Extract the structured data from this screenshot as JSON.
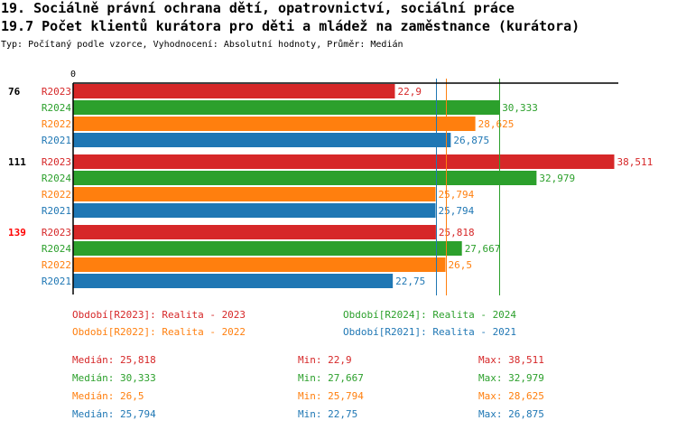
{
  "header": {
    "title1": "19. Sociálně právní ochrana dětí, opatrovnictví, sociální práce",
    "title2": "19.7 Počet klientů kurátora pro děti a mládež na zaměstnance (kurátora)",
    "subtitle": "Typ: Počítaný podle vzorce, Vyhodnocení: Absolutní hodnoty, Průměr: Medián"
  },
  "colors": {
    "R2023": "#d62728",
    "R2024": "#2ca02c",
    "R2022": "#ff7f0e",
    "R2021": "#1f77b4"
  },
  "chart_data": {
    "type": "bar",
    "orientation": "horizontal",
    "x_tick_labels": [
      "0"
    ],
    "xlim": [
      0,
      38.8
    ],
    "groups": [
      {
        "label": "76",
        "highlight": false,
        "bars": [
          {
            "series": "R2023",
            "value": 22.9,
            "label": "22,9"
          },
          {
            "series": "R2024",
            "value": 30.333,
            "label": "30,333"
          },
          {
            "series": "R2022",
            "value": 28.625,
            "label": "28,625"
          },
          {
            "series": "R2021",
            "value": 26.875,
            "label": "26,875"
          }
        ]
      },
      {
        "label": "111",
        "highlight": false,
        "bars": [
          {
            "series": "R2023",
            "value": 38.511,
            "label": "38,511"
          },
          {
            "series": "R2024",
            "value": 32.979,
            "label": "32,979"
          },
          {
            "series": "R2022",
            "value": 25.794,
            "label": "25,794"
          },
          {
            "series": "R2021",
            "value": 25.794,
            "label": "25,794"
          }
        ]
      },
      {
        "label": "139",
        "highlight": true,
        "bars": [
          {
            "series": "R2023",
            "value": 25.818,
            "label": "25,818"
          },
          {
            "series": "R2024",
            "value": 27.667,
            "label": "27,667"
          },
          {
            "series": "R2022",
            "value": 26.5,
            "label": "26,5"
          },
          {
            "series": "R2021",
            "value": 22.75,
            "label": "22,75"
          }
        ]
      }
    ],
    "median_lines": [
      {
        "series": "R2023",
        "value": 25.818
      },
      {
        "series": "R2024",
        "value": 30.333
      },
      {
        "series": "R2022",
        "value": 26.5
      },
      {
        "series": "R2021",
        "value": 25.794
      }
    ],
    "legend": [
      {
        "series": "R2023",
        "text": "Období[R2023]: Realita - 2023"
      },
      {
        "series": "R2024",
        "text": "Období[R2024]: Realita - 2024"
      },
      {
        "series": "R2022",
        "text": "Období[R2022]: Realita - 2022"
      },
      {
        "series": "R2021",
        "text": "Období[R2021]: Realita - 2021"
      }
    ],
    "stats": [
      {
        "series": "R2023",
        "median": "Medián: 25,818",
        "min": "Min: 22,9",
        "max": "Max: 38,511"
      },
      {
        "series": "R2024",
        "median": "Medián: 30,333",
        "min": "Min: 27,667",
        "max": "Max: 32,979"
      },
      {
        "series": "R2022",
        "median": "Medián: 26,5",
        "min": "Min: 25,794",
        "max": "Max: 28,625"
      },
      {
        "series": "R2021",
        "median": "Medián: 25,794",
        "min": "Min: 22,75",
        "max": "Max: 26,875"
      }
    ]
  }
}
